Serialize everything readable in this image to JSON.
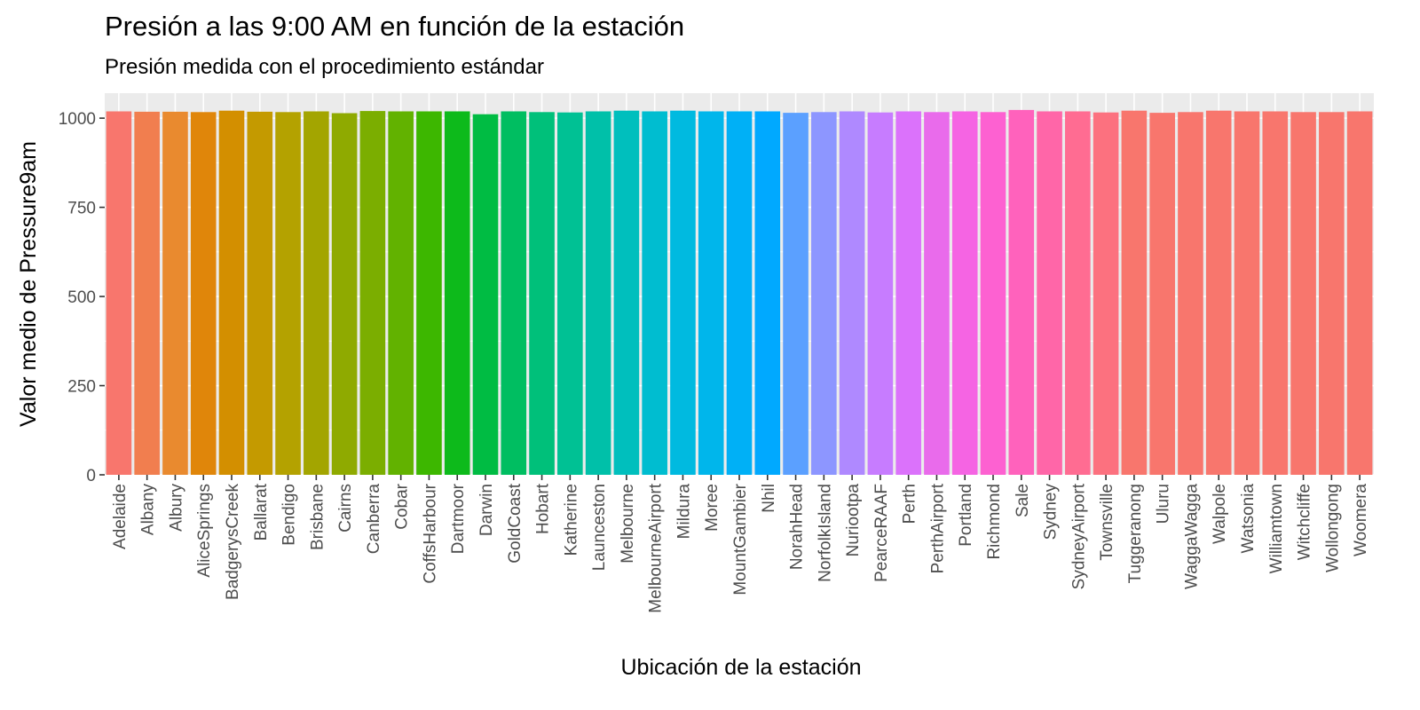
{
  "chart_data": {
    "type": "bar",
    "title": "Presión a las 9:00 AM en función de la estación",
    "subtitle": "Presión medida con el procedimiento estándar",
    "xlabel": "Ubicación de la estación",
    "ylabel": "Valor medio de Pressure9am",
    "ylim": [
      0,
      1070
    ],
    "yticks": [
      0,
      250,
      500,
      750,
      1000
    ],
    "grid": true,
    "legend": "none",
    "categories": [
      "Adelaide",
      "Albany",
      "Albury",
      "AliceSprings",
      "BadgerysCreek",
      "Ballarat",
      "Bendigo",
      "Brisbane",
      "Cairns",
      "Canberra",
      "Cobar",
      "CoffsHarbour",
      "Dartmoor",
      "Darwin",
      "GoldCoast",
      "Hobart",
      "Katherine",
      "Launceston",
      "Melbourne",
      "MelbourneAirport",
      "Mildura",
      "Moree",
      "MountGambier",
      "Nhil",
      "NorahHead",
      "NorfolkIsland",
      "Nuriootpa",
      "PearceRAAF",
      "Perth",
      "PerthAirport",
      "Portland",
      "Richmond",
      "Sale",
      "Sydney",
      "SydneyAirport",
      "Townsville",
      "Tuggeranong",
      "Uluru",
      "WaggaWagga",
      "Walpole",
      "Watsonia",
      "Williamtown",
      "Witchcliffe",
      "Wollongong",
      "Woomera"
    ],
    "values": [
      1019,
      1018,
      1018,
      1017,
      1021,
      1018,
      1017,
      1019,
      1014,
      1020,
      1019,
      1019,
      1019,
      1011,
      1019,
      1017,
      1016,
      1019,
      1021,
      1019,
      1021,
      1019,
      1019,
      1019,
      1015,
      1017,
      1019,
      1016,
      1019,
      1017,
      1019,
      1017,
      1023,
      1019,
      1019,
      1016,
      1021,
      1015,
      1017,
      1021,
      1019,
      1019,
      1017,
      1017,
      1019
    ],
    "colors": [
      "#F8766D",
      "#F17E4F",
      "#E98A2F",
      "#E0860A",
      "#D38F00",
      "#C49A00",
      "#B4A200",
      "#A3A500",
      "#8FAA00",
      "#7BAE00",
      "#62B200",
      "#3DB700",
      "#0DBA1B",
      "#00BC43",
      "#00BE61",
      "#00C07A",
      "#00C194",
      "#00C0A9",
      "#00BFBD",
      "#00BDD0",
      "#00BAE0",
      "#00B6EB",
      "#00B0F6",
      "#00A9FF",
      "#5BA0FF",
      "#8D96FF",
      "#AF89FF",
      "#C77CFF",
      "#DB72FB",
      "#E96BEB",
      "#F564E3",
      "#FD61D1",
      "#FF62BC",
      "#FF66A8",
      "#FF6C92",
      "#FC717F",
      "#F8766D",
      "#F8766D",
      "#F8766D",
      "#F8766D",
      "#F8766D",
      "#F8766D",
      "#F8766D",
      "#F8766D",
      "#F8766D"
    ]
  }
}
